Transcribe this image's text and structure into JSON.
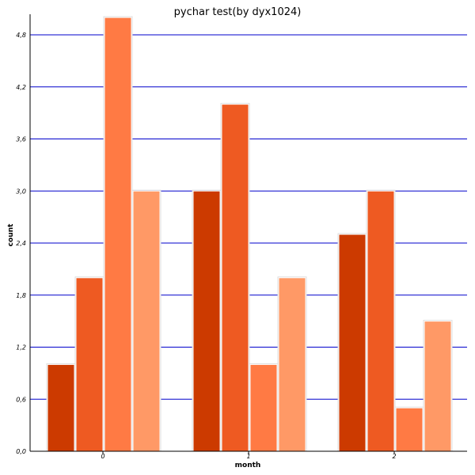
{
  "chart_data": {
    "type": "bar",
    "title": "pychar test(by dyx1024)",
    "xlabel": "month",
    "ylabel": "count",
    "categories": [
      "0",
      "1",
      "2"
    ],
    "series": [
      {
        "values": [
          1.0,
          3.0,
          2.5
        ],
        "color": "#cc3a00"
      },
      {
        "values": [
          2.0,
          4.0,
          3.0
        ],
        "color": "#ee5a22"
      },
      {
        "values": [
          5.0,
          1.0,
          0.5
        ],
        "color": "#ff7a44"
      },
      {
        "values": [
          3.0,
          2.0,
          1.5
        ],
        "color": "#ff9966"
      }
    ],
    "ylim": [
      0,
      5.0
    ],
    "yticks": [
      "0,0",
      "0,6",
      "1,2",
      "1,8",
      "2,4",
      "3,0",
      "3,6",
      "4,2",
      "4,8"
    ],
    "ytick_values": [
      0,
      0.6,
      1.2,
      1.8,
      2.4,
      3.0,
      3.6,
      4.2,
      4.8
    ],
    "grid": true,
    "grid_color": "#0000cc",
    "axis_color": "#000000"
  }
}
